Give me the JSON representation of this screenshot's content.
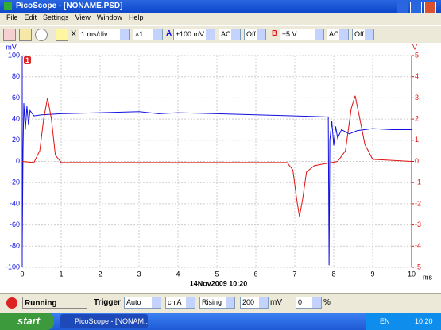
{
  "window": {
    "title": "PicoScope - [NONAME.PSD]"
  },
  "menu": [
    "File",
    "Edit",
    "Settings",
    "View",
    "Window",
    "Help"
  ],
  "toolbar": {
    "x_prefix": "X",
    "timebase": "1 ms/div",
    "multiplier": "×1",
    "channel_a": "A",
    "range_a": "±100 mV",
    "coupling_a": "AC",
    "offset_a": "Off",
    "channel_b": "B",
    "range_b": "±5 V",
    "coupling_b": "AC",
    "offset_b": "Off"
  },
  "chart_data": {
    "type": "line",
    "y_label": "mV",
    "y2_label": "V",
    "x_label": "ms",
    "timestamp": "14Nov2009 10:20",
    "marker_label": "1",
    "xlim": [
      0,
      10
    ],
    "xticks": [
      0,
      1,
      2,
      3,
      4,
      5,
      6,
      7,
      8,
      9,
      10
    ],
    "ylim": [
      -100,
      100
    ],
    "yticks": [
      -100,
      -80,
      -60,
      -40,
      -20,
      0,
      20,
      40,
      60,
      80,
      100
    ],
    "y2lim": [
      -5,
      5
    ],
    "y2ticks": [
      -5,
      -4,
      -3,
      -2,
      -1,
      0,
      1,
      2,
      3,
      4,
      5
    ],
    "grid": true,
    "series": [
      {
        "color": "#1010e0",
        "x": [
          0,
          0.02,
          0.04,
          0.08,
          0.12,
          0.16,
          0.2,
          0.3,
          0.5,
          1,
          2,
          3,
          3.5,
          4,
          5,
          6,
          7,
          7.8,
          7.86,
          7.88,
          7.9,
          7.95,
          8.0,
          8.05,
          8.1,
          8.2,
          8.4,
          8.6,
          9,
          9.5,
          10
        ],
        "values": [
          -85,
          10,
          55,
          30,
          52,
          35,
          48,
          43,
          44,
          45,
          46,
          47,
          45,
          46,
          45,
          44,
          43,
          42,
          42,
          -98,
          20,
          38,
          15,
          33,
          22,
          30,
          26,
          29,
          31,
          30,
          30
        ]
      },
      {
        "color": "#e01010",
        "axis": "y2",
        "x": [
          0,
          0.3,
          0.45,
          0.55,
          0.65,
          0.75,
          0.85,
          1,
          3.5,
          6.8,
          6.95,
          7.05,
          7.12,
          7.2,
          7.3,
          7.5,
          7.8,
          8.1,
          8.3,
          8.45,
          8.55,
          8.65,
          8.8,
          9,
          10
        ],
        "values": [
          0,
          -0.05,
          0.5,
          2.0,
          3.0,
          2.0,
          0.3,
          -0.05,
          -0.05,
          -0.05,
          -0.4,
          -1.8,
          -2.6,
          -1.8,
          -0.5,
          -0.2,
          -0.1,
          0,
          0.5,
          2.5,
          3.1,
          2.2,
          0.8,
          0.1,
          0
        ]
      }
    ]
  },
  "status": {
    "state": "Running",
    "trigger_label": "Trigger",
    "trigger_mode": "Auto",
    "trigger_channel": "ch A",
    "trigger_edge": "Rising",
    "trigger_level": "200",
    "level_unit": "mV",
    "pretrigger": "0",
    "pretrigger_unit": "%"
  },
  "taskbar": {
    "start": "start",
    "task": "PicoScope - [NONAM...",
    "language": "EN",
    "clock": "10:20"
  }
}
